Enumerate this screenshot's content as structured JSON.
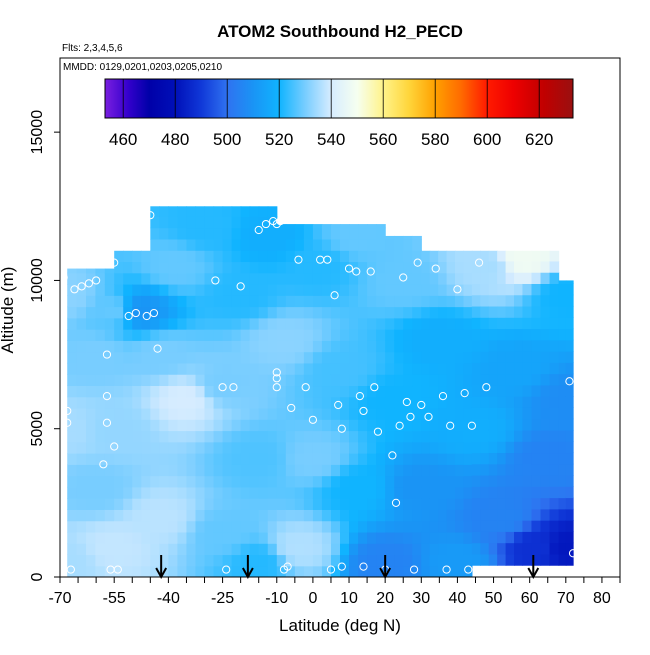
{
  "chart_data": {
    "type": "heatmap",
    "title": "ATOM2 Southbound H2_PECD",
    "subtitle_flights": "Flts: 2,3,4,5,6",
    "subtitle_dates": "MMDD: 0129,0201,0203,0205,0210",
    "xlabel": "Latitude (deg N)",
    "ylabel": "Altitude (m)",
    "xlim": [
      -70,
      85
    ],
    "ylim": [
      0,
      17500
    ],
    "x_ticks": [
      -70,
      -55,
      -40,
      -25,
      -10,
      0,
      10,
      20,
      30,
      40,
      50,
      60,
      70,
      80
    ],
    "x_ticks_labeled": [
      "-70",
      "-55",
      "-40",
      "-25",
      "-10",
      "0",
      "10",
      "20",
      "30",
      "40",
      "50",
      "60",
      "70",
      "80"
    ],
    "x_minor_ticks": [
      -65,
      -60,
      -50,
      -45,
      -35,
      -30,
      -20,
      -15,
      -5,
      5,
      15,
      25,
      35,
      45,
      55,
      65,
      75,
      85
    ],
    "y_ticks": [
      0,
      5000,
      10000,
      15000
    ],
    "y_tick_labels": [
      "0",
      "5000",
      "10000",
      "15000"
    ],
    "colorbar": {
      "min": 453,
      "max": 633,
      "tick_values": [
        460,
        480,
        500,
        520,
        540,
        560,
        580,
        600,
        620
      ],
      "tick_labels": [
        "460",
        "480",
        "500",
        "520",
        "540",
        "560",
        "580",
        "600",
        "620"
      ],
      "divider_values": [
        460,
        480,
        500,
        520,
        540,
        560,
        580,
        600,
        620
      ],
      "color_stops": [
        {
          "value": 453,
          "color": "#7a1fe0"
        },
        {
          "value": 462,
          "color": "#3300cc"
        },
        {
          "value": 470,
          "color": "#0000a8"
        },
        {
          "value": 480,
          "color": "#0010b8"
        },
        {
          "value": 490,
          "color": "#1038d8"
        },
        {
          "value": 500,
          "color": "#2f72f0"
        },
        {
          "value": 510,
          "color": "#1a94f5"
        },
        {
          "value": 520,
          "color": "#10b4ff"
        },
        {
          "value": 530,
          "color": "#78cdff"
        },
        {
          "value": 540,
          "color": "#d6ecff"
        },
        {
          "value": 550,
          "color": "#f6fff0"
        },
        {
          "value": 560,
          "color": "#fff38a"
        },
        {
          "value": 570,
          "color": "#ffd53a"
        },
        {
          "value": 580,
          "color": "#ffa000"
        },
        {
          "value": 590,
          "color": "#ff6a00"
        },
        {
          "value": 600,
          "color": "#ff1a00"
        },
        {
          "value": 610,
          "color": "#ee0000"
        },
        {
          "value": 622,
          "color": "#c00000"
        },
        {
          "value": 633,
          "color": "#9a1010"
        }
      ]
    },
    "grid": false,
    "legend": "colorbar top",
    "field_columns": [
      {
        "x0": -68,
        "x1": -55,
        "top": 10400,
        "bottom": 0
      },
      {
        "x0": -55,
        "x1": -45,
        "top": 11000,
        "bottom": 0
      },
      {
        "x0": -45,
        "x1": -35,
        "top": 12500,
        "bottom": 0
      },
      {
        "x0": -35,
        "x1": -25,
        "top": 12500,
        "bottom": 0
      },
      {
        "x0": -25,
        "x1": -15,
        "top": 12500,
        "bottom": 0
      },
      {
        "x0": -15,
        "x1": -10,
        "top": 12500,
        "bottom": 0
      },
      {
        "x0": -10,
        "x1": 0,
        "top": 11900,
        "bottom": 0
      },
      {
        "x0": 0,
        "x1": 10,
        "top": 11900,
        "bottom": 0
      },
      {
        "x0": 10,
        "x1": 20,
        "top": 11900,
        "bottom": 0
      },
      {
        "x0": 20,
        "x1": 30,
        "top": 11500,
        "bottom": 0
      },
      {
        "x0": 30,
        "x1": 44,
        "top": 11000,
        "bottom": 0
      },
      {
        "x0": 44,
        "x1": 58,
        "top": 11000,
        "bottom": 400
      },
      {
        "x0": 58,
        "x1": 68,
        "top": 11000,
        "bottom": 400
      },
      {
        "x0": 68,
        "x1": 72,
        "top": 10000,
        "bottom": 400
      }
    ],
    "field_anchors": [
      {
        "x": -68,
        "y": 500,
        "v": 535
      },
      {
        "x": -68,
        "y": 5000,
        "v": 535
      },
      {
        "x": -68,
        "y": 9500,
        "v": 532
      },
      {
        "x": -60,
        "y": 3000,
        "v": 530
      },
      {
        "x": -60,
        "y": 7500,
        "v": 530
      },
      {
        "x": -55,
        "y": 1000,
        "v": 538
      },
      {
        "x": -55,
        "y": 5000,
        "v": 533
      },
      {
        "x": -55,
        "y": 9000,
        "v": 528
      },
      {
        "x": -48,
        "y": 9000,
        "v": 510
      },
      {
        "x": -42,
        "y": 7500,
        "v": 530
      },
      {
        "x": -42,
        "y": 2000,
        "v": 537
      },
      {
        "x": -35,
        "y": 6000,
        "v": 540
      },
      {
        "x": -38,
        "y": 10500,
        "v": 528
      },
      {
        "x": -30,
        "y": 11800,
        "v": 522
      },
      {
        "x": -25,
        "y": 6500,
        "v": 530
      },
      {
        "x": -25,
        "y": 1500,
        "v": 528
      },
      {
        "x": -20,
        "y": 9500,
        "v": 522
      },
      {
        "x": -15,
        "y": 500,
        "v": 522
      },
      {
        "x": -15,
        "y": 4000,
        "v": 526
      },
      {
        "x": -12,
        "y": 11500,
        "v": 518
      },
      {
        "x": -8,
        "y": 8000,
        "v": 532
      },
      {
        "x": -4,
        "y": 1000,
        "v": 536
      },
      {
        "x": 0,
        "y": 4000,
        "v": 530
      },
      {
        "x": 2,
        "y": 10500,
        "v": 522
      },
      {
        "x": 8,
        "y": 7000,
        "v": 525
      },
      {
        "x": 12,
        "y": 3000,
        "v": 520
      },
      {
        "x": 12,
        "y": 11500,
        "v": 528
      },
      {
        "x": 20,
        "y": 500,
        "v": 505
      },
      {
        "x": 22,
        "y": 6000,
        "v": 520
      },
      {
        "x": 25,
        "y": 10000,
        "v": 528
      },
      {
        "x": 30,
        "y": 3000,
        "v": 510
      },
      {
        "x": 35,
        "y": 8000,
        "v": 518
      },
      {
        "x": 40,
        "y": 500,
        "v": 512
      },
      {
        "x": 45,
        "y": 5000,
        "v": 518
      },
      {
        "x": 48,
        "y": 10500,
        "v": 535
      },
      {
        "x": 52,
        "y": 2000,
        "v": 505
      },
      {
        "x": 56,
        "y": 7000,
        "v": 515
      },
      {
        "x": 58,
        "y": 10800,
        "v": 548
      },
      {
        "x": 62,
        "y": 1000,
        "v": 488
      },
      {
        "x": 65,
        "y": 4000,
        "v": 505
      },
      {
        "x": 70,
        "y": 1000,
        "v": 482
      },
      {
        "x": 70,
        "y": 6000,
        "v": 508
      },
      {
        "x": 70,
        "y": 9500,
        "v": 520
      }
    ],
    "sample_points": [
      {
        "x": -69,
        "y": 10100
      },
      {
        "x": -68,
        "y": 5600
      },
      {
        "x": -68,
        "y": 5200
      },
      {
        "x": -67,
        "y": 250
      },
      {
        "x": -66,
        "y": 9700
      },
      {
        "x": -64,
        "y": 9800
      },
      {
        "x": -62,
        "y": 9900
      },
      {
        "x": -60,
        "y": 10000
      },
      {
        "x": -58,
        "y": 3800
      },
      {
        "x": -57,
        "y": 7500
      },
      {
        "x": -57,
        "y": 6100
      },
      {
        "x": -57,
        "y": 5200
      },
      {
        "x": -56,
        "y": 250
      },
      {
        "x": -55,
        "y": 10600
      },
      {
        "x": -55,
        "y": 4400
      },
      {
        "x": -54,
        "y": 250
      },
      {
        "x": -51,
        "y": 8800
      },
      {
        "x": -49,
        "y": 8900
      },
      {
        "x": -48,
        "y": 11900
      },
      {
        "x": -46,
        "y": 8800
      },
      {
        "x": -45,
        "y": 12200
      },
      {
        "x": -44,
        "y": 8900
      },
      {
        "x": -43,
        "y": 7700
      },
      {
        "x": -27,
        "y": 10000
      },
      {
        "x": -25,
        "y": 6400
      },
      {
        "x": -22,
        "y": 6400
      },
      {
        "x": -20,
        "y": 9800
      },
      {
        "x": -24,
        "y": 250
      },
      {
        "x": -15,
        "y": 11700
      },
      {
        "x": -13,
        "y": 11900
      },
      {
        "x": -11,
        "y": 12000
      },
      {
        "x": -10,
        "y": 11900
      },
      {
        "x": -9,
        "y": 12000
      },
      {
        "x": -10,
        "y": 6900
      },
      {
        "x": -10,
        "y": 6700
      },
      {
        "x": -10,
        "y": 6400
      },
      {
        "x": -8,
        "y": 250
      },
      {
        "x": -7,
        "y": 350
      },
      {
        "x": -6,
        "y": 5700
      },
      {
        "x": -4,
        "y": 10700
      },
      {
        "x": -2,
        "y": 6400
      },
      {
        "x": 0,
        "y": 5300
      },
      {
        "x": 2,
        "y": 10700
      },
      {
        "x": 4,
        "y": 10700
      },
      {
        "x": 5,
        "y": 250
      },
      {
        "x": 6,
        "y": 9500
      },
      {
        "x": 7,
        "y": 5800
      },
      {
        "x": 8,
        "y": 5000
      },
      {
        "x": 10,
        "y": 10400
      },
      {
        "x": 12,
        "y": 10300
      },
      {
        "x": 13,
        "y": 6100
      },
      {
        "x": 14,
        "y": 5600
      },
      {
        "x": 16,
        "y": 10300
      },
      {
        "x": 17,
        "y": 6400
      },
      {
        "x": 18,
        "y": 4900
      },
      {
        "x": 20,
        "y": 250
      },
      {
        "x": 22,
        "y": 4100
      },
      {
        "x": 23,
        "y": 2500
      },
      {
        "x": 24,
        "y": 5100
      },
      {
        "x": 25,
        "y": 10100
      },
      {
        "x": 26,
        "y": 5900
      },
      {
        "x": 27,
        "y": 5400
      },
      {
        "x": 28,
        "y": 250
      },
      {
        "x": 29,
        "y": 10600
      },
      {
        "x": 30,
        "y": 5800
      },
      {
        "x": 32,
        "y": 5400
      },
      {
        "x": 34,
        "y": 10400
      },
      {
        "x": 36,
        "y": 6100
      },
      {
        "x": 37,
        "y": 250
      },
      {
        "x": 38,
        "y": 5100
      },
      {
        "x": 40,
        "y": 9700
      },
      {
        "x": 42,
        "y": 6200
      },
      {
        "x": 43,
        "y": 250
      },
      {
        "x": 44,
        "y": 5100
      },
      {
        "x": 46,
        "y": 10600
      },
      {
        "x": 48,
        "y": 6400
      },
      {
        "x": 71,
        "y": 6600
      },
      {
        "x": 72,
        "y": 800
      },
      {
        "x": 14,
        "y": 350
      },
      {
        "x": 8,
        "y": 350
      }
    ],
    "arrows_at_latitude": [
      -42,
      -18,
      20,
      61
    ]
  }
}
